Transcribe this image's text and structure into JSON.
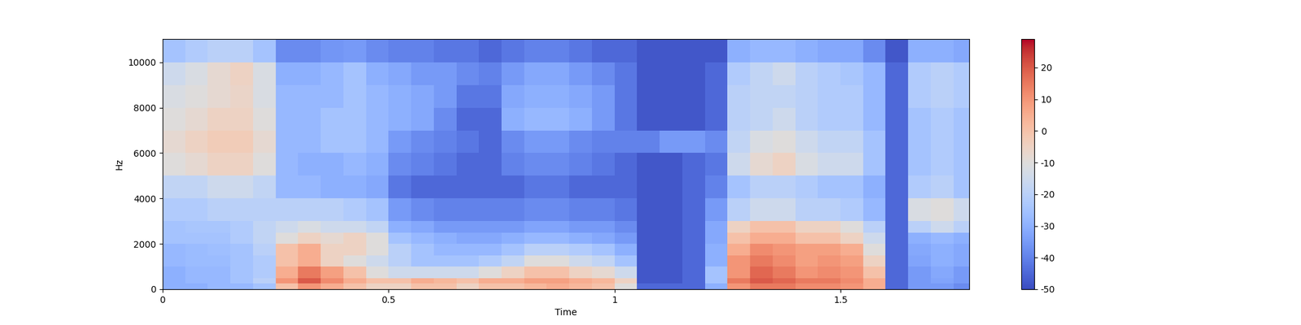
{
  "chart_data": {
    "type": "heatmap",
    "x_label": "Time",
    "y_label": "Hz",
    "xlim": [
      0,
      1.785
    ],
    "xticks": [
      0,
      0.5,
      1,
      1.5
    ],
    "ylim": [
      0,
      11025
    ],
    "yticks": [
      0,
      2000,
      4000,
      6000,
      8000,
      10000
    ],
    "time_edges": [
      0,
      0.05,
      0.1,
      0.15,
      0.2,
      0.25,
      0.3,
      0.35,
      0.4,
      0.45,
      0.5,
      0.55,
      0.6,
      0.65,
      0.7,
      0.75,
      0.8,
      0.85,
      0.9,
      0.95,
      1.0,
      1.05,
      1.1,
      1.15,
      1.2,
      1.25,
      1.3,
      1.35,
      1.4,
      1.45,
      1.5,
      1.55,
      1.6,
      1.65,
      1.7,
      1.75,
      1.785
    ],
    "freq_edges": [
      0,
      250,
      500,
      1000,
      1500,
      2000,
      2500,
      3000,
      4000,
      5000,
      6000,
      7000,
      8000,
      9000,
      10000,
      11025
    ],
    "cells": [
      [
        -30,
        -30,
        -28,
        -28,
        -25,
        0,
        10,
        5,
        0,
        -5,
        -5,
        0,
        0,
        -5,
        0,
        0,
        3,
        5,
        3,
        0,
        -10,
        -45,
        -45,
        -45,
        -30,
        10,
        15,
        15,
        12,
        12,
        10,
        5,
        -45,
        -35,
        -35,
        -38
      ],
      [
        -30,
        -28,
        -28,
        -25,
        -20,
        10,
        20,
        12,
        5,
        0,
        0,
        5,
        3,
        0,
        5,
        5,
        8,
        8,
        5,
        3,
        -5,
        -48,
        -48,
        -45,
        -25,
        15,
        20,
        18,
        15,
        15,
        12,
        5,
        -45,
        -35,
        -33,
        -35
      ],
      [
        -30,
        -28,
        -28,
        -25,
        -22,
        5,
        15,
        8,
        0,
        -10,
        -15,
        -15,
        -15,
        -15,
        -10,
        -5,
        0,
        0,
        -5,
        -8,
        -15,
        -48,
        -48,
        -45,
        -25,
        10,
        18,
        15,
        10,
        12,
        10,
        0,
        -45,
        -35,
        -32,
        -35
      ],
      [
        -28,
        -27,
        -27,
        -25,
        -22,
        0,
        5,
        -5,
        -10,
        -15,
        -20,
        -25,
        -25,
        -25,
        -22,
        -18,
        -10,
        -10,
        -15,
        -18,
        -25,
        -48,
        -48,
        -45,
        -30,
        10,
        15,
        12,
        8,
        10,
        8,
        -5,
        -45,
        -33,
        -30,
        -32
      ],
      [
        -28,
        -27,
        -26,
        -25,
        -20,
        0,
        5,
        -5,
        -5,
        -10,
        -20,
        -25,
        -28,
        -28,
        -28,
        -25,
        -20,
        -20,
        -22,
        -25,
        -30,
        -48,
        -48,
        -45,
        -30,
        5,
        12,
        10,
        8,
        8,
        5,
        -10,
        -45,
        -32,
        -30,
        -32
      ],
      [
        -25,
        -25,
        -25,
        -22,
        -18,
        -10,
        -5,
        -8,
        -5,
        -10,
        -25,
        -28,
        -30,
        -32,
        -32,
        -30,
        -28,
        -28,
        -30,
        -32,
        -35,
        -48,
        -48,
        -45,
        -32,
        0,
        5,
        5,
        0,
        0,
        -5,
        -15,
        -45,
        -30,
        -28,
        -30
      ],
      [
        -25,
        -24,
        -24,
        -22,
        -18,
        -15,
        -12,
        -15,
        -15,
        -18,
        -30,
        -32,
        -35,
        -35,
        -35,
        -35,
        -33,
        -33,
        -35,
        -35,
        -38,
        -48,
        -48,
        -45,
        -32,
        -5,
        0,
        0,
        -5,
        -5,
        -10,
        -20,
        -45,
        -20,
        -15,
        -20
      ],
      [
        -22,
        -22,
        -20,
        -20,
        -20,
        -20,
        -20,
        -20,
        -22,
        -25,
        -35,
        -38,
        -40,
        -40,
        -40,
        -40,
        -38,
        -38,
        -40,
        -40,
        -42,
        -48,
        -48,
        -45,
        -35,
        -20,
        -15,
        -15,
        -20,
        -20,
        -22,
        -28,
        -45,
        -12,
        -10,
        -15
      ],
      [
        -18,
        -18,
        -15,
        -15,
        -18,
        -28,
        -28,
        -30,
        -30,
        -32,
        -42,
        -45,
        -45,
        -45,
        -45,
        -45,
        -42,
        -42,
        -45,
        -45,
        -45,
        -48,
        -48,
        -45,
        -40,
        -25,
        -20,
        -20,
        -22,
        -25,
        -25,
        -30,
        -45,
        -22,
        -20,
        -25
      ],
      [
        -10,
        -8,
        -5,
        -5,
        -10,
        -28,
        -30,
        -30,
        -28,
        -30,
        -38,
        -40,
        -42,
        -45,
        -45,
        -40,
        -38,
        -38,
        -40,
        -42,
        -45,
        -48,
        -48,
        -45,
        -42,
        -15,
        -8,
        -5,
        -12,
        -15,
        -15,
        -25,
        -45,
        -25,
        -22,
        -25
      ],
      [
        -8,
        -5,
        -3,
        -3,
        -8,
        -28,
        -28,
        -25,
        -25,
        -28,
        -35,
        -38,
        -40,
        -42,
        -45,
        -38,
        -35,
        -35,
        -38,
        -40,
        -40,
        -40,
        -35,
        -35,
        -38,
        -18,
        -12,
        -10,
        -15,
        -18,
        -18,
        -25,
        -45,
        -25,
        -22,
        -25
      ],
      [
        -10,
        -8,
        -5,
        -5,
        -10,
        -28,
        -28,
        -25,
        -25,
        -28,
        -30,
        -32,
        -38,
        -45,
        -45,
        -30,
        -28,
        -28,
        -30,
        -35,
        -42,
        -48,
        -48,
        -48,
        -45,
        -20,
        -18,
        -15,
        -20,
        -22,
        -22,
        -28,
        -45,
        -25,
        -22,
        -25
      ],
      [
        -12,
        -10,
        -8,
        -6,
        -12,
        -28,
        -28,
        -28,
        -25,
        -28,
        -30,
        -32,
        -35,
        -42,
        -42,
        -32,
        -30,
        -30,
        -32,
        -35,
        -42,
        -48,
        -48,
        -48,
        -45,
        -20,
        -18,
        -18,
        -20,
        -22,
        -22,
        -28,
        -45,
        -22,
        -20,
        -22
      ],
      [
        -15,
        -12,
        -8,
        -5,
        -12,
        -30,
        -30,
        -28,
        -25,
        -30,
        -32,
        -35,
        -35,
        -38,
        -40,
        -35,
        -32,
        -32,
        -35,
        -38,
        -42,
        -48,
        -48,
        -48,
        -45,
        -22,
        -18,
        -15,
        -20,
        -22,
        -24,
        -28,
        -45,
        -22,
        -20,
        -22
      ],
      [
        -25,
        -22,
        -20,
        -20,
        -25,
        -38,
        -38,
        -36,
        -35,
        -38,
        -40,
        -40,
        -42,
        -42,
        -45,
        -42,
        -40,
        -40,
        -42,
        -45,
        -45,
        -48,
        -48,
        -48,
        -48,
        -30,
        -28,
        -28,
        -30,
        -32,
        -32,
        -38,
        -48,
        -30,
        -30,
        -32
      ]
    ],
    "colorbar_range": [
      -50,
      29
    ],
    "colorbar_ticks": [
      -50,
      -40,
      -30,
      -20,
      -10,
      0,
      10,
      20
    ]
  }
}
